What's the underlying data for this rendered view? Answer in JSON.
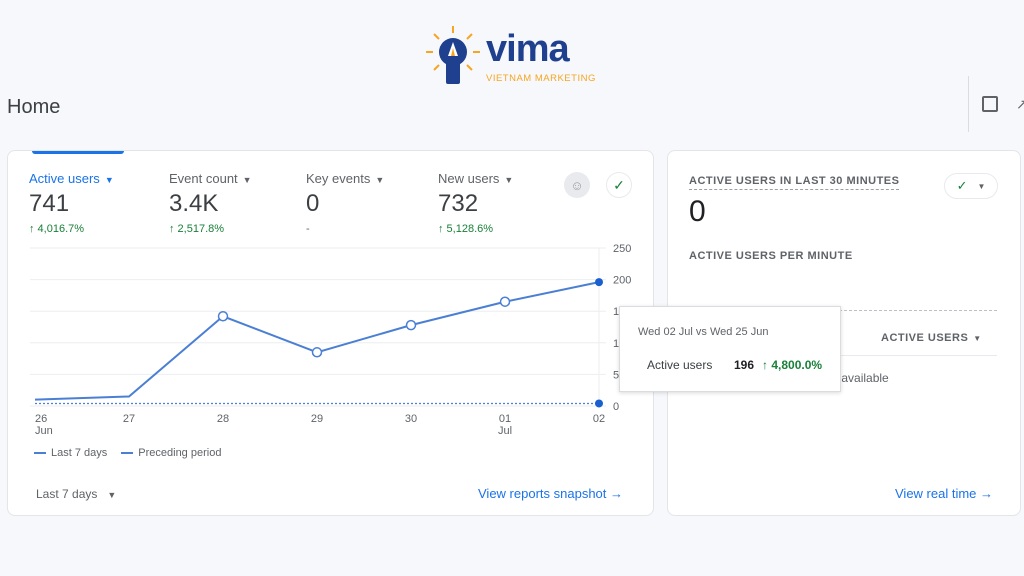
{
  "logo": {
    "text": "vima",
    "tagline": "VIETNAM MARKETING"
  },
  "page_title": "Home",
  "metrics": [
    {
      "label": "Active users",
      "value": "741",
      "change": "↑ 4,016.7%"
    },
    {
      "label": "Event count",
      "value": "3.4K",
      "change": "↑ 2,517.8%"
    },
    {
      "label": "Key events",
      "value": "0",
      "change": "-"
    },
    {
      "label": "New users",
      "value": "732",
      "change": "↑ 5,128.6%"
    }
  ],
  "chart_data": {
    "type": "line",
    "categories": [
      "26 Jun",
      "27",
      "28",
      "29",
      "30",
      "01 Jul",
      "02"
    ],
    "x_tick_labels": [
      [
        "26",
        "Jun"
      ],
      [
        "27",
        ""
      ],
      [
        "28",
        ""
      ],
      [
        "29",
        ""
      ],
      [
        "30",
        ""
      ],
      [
        "01",
        "Jul"
      ],
      [
        "02",
        ""
      ]
    ],
    "series": [
      {
        "name": "Last 7 days",
        "values": [
          10,
          15,
          142,
          85,
          128,
          165,
          196
        ],
        "style": "solid"
      },
      {
        "name": "Preceding period",
        "values": [
          4,
          4,
          4,
          4,
          4,
          4,
          4
        ],
        "style": "dashed"
      }
    ],
    "ylim": [
      0,
      250
    ],
    "yticks": [
      "0",
      "50",
      "100",
      "150",
      "200",
      "250"
    ],
    "grid": true,
    "legend": "bottom-left",
    "color": "#4a7fd4"
  },
  "tooltip": {
    "title": "Wed 02 Jul vs Wed 25 Jun",
    "metric": "Active users",
    "value": "196",
    "change": "↑ 4,800.0%"
  },
  "date_range": "Last 7 days",
  "view_snapshot": "View reports snapshot →",
  "realtime": {
    "title": "ACTIVE USERS IN LAST 30 MINUTES",
    "value": "0",
    "per_minute": "ACTIVE USERS PER MINUTE",
    "column": "ACTIVE USERS",
    "no_data": "No data available",
    "link": "View real time →"
  }
}
